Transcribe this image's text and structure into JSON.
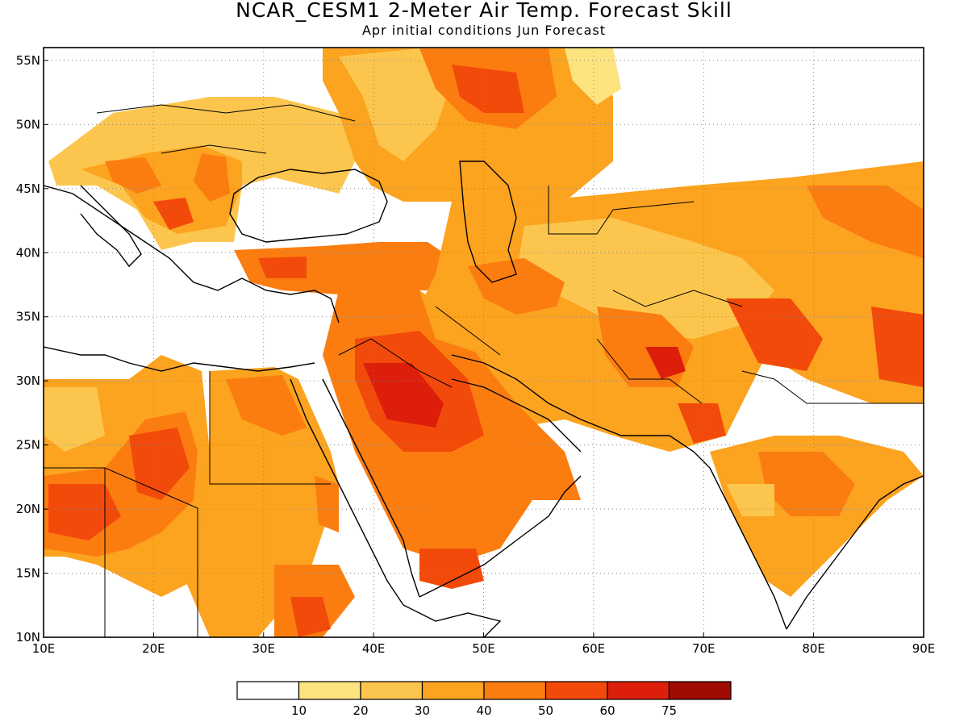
{
  "title": "NCAR_CESM1 2-Meter Air Temp. Forecast Skill",
  "subtitle": "Apr initial conditions  Jun Forecast",
  "map": {
    "lon_range": [
      10,
      90
    ],
    "lat_range": [
      10,
      56
    ],
    "lon_ticks": [
      "10E",
      "20E",
      "30E",
      "40E",
      "50E",
      "60E",
      "70E",
      "80E",
      "90E"
    ],
    "lat_ticks": [
      "10N",
      "15N",
      "20N",
      "25N",
      "30N",
      "35N",
      "40N",
      "45N",
      "50N",
      "55N"
    ],
    "grid": "dotted"
  },
  "colorbar": {
    "colors": [
      "#ffffff",
      "#fde47f",
      "#fcc64e",
      "#fca31f",
      "#fb7d10",
      "#f24a0a",
      "#dc1e0a",
      "#a00b04"
    ],
    "labels": [
      "10",
      "20",
      "30",
      "40",
      "50",
      "60",
      "75"
    ]
  }
}
